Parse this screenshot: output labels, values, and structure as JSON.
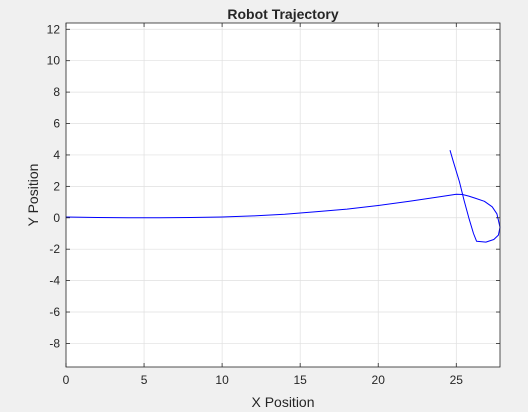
{
  "chart_data": {
    "type": "line",
    "title": "Robot Trajectory",
    "xlabel": "X Position",
    "ylabel": "Y Position",
    "xlim": [
      0,
      27.8
    ],
    "ylim": [
      -9.5,
      12.4
    ],
    "xticks": [
      0,
      5,
      10,
      15,
      20,
      25
    ],
    "xtick_labels": [
      "0",
      "5",
      "10",
      "15",
      "20",
      "25"
    ],
    "yticks": [
      -8,
      -6,
      -4,
      -2,
      0,
      2,
      4,
      6,
      8,
      10,
      12
    ],
    "ytick_labels": [
      "-8",
      "-6",
      "-4",
      "-2",
      "0",
      "2",
      "4",
      "6",
      "8",
      "10",
      "12"
    ],
    "grid": true,
    "series": [
      {
        "color": "#0000ff",
        "x": [
          0,
          2,
          4,
          6,
          8,
          10,
          12,
          14,
          16,
          18,
          20,
          22,
          24,
          25,
          25.4,
          25.8,
          26.2,
          26.8,
          27.3,
          27.6,
          27.8,
          27.7,
          27.4,
          26.9,
          26.3,
          26.1,
          25.8,
          25.5,
          25.2,
          24.8,
          24.6
        ],
        "y": [
          0.05,
          0.02,
          0.0,
          0.0,
          0.02,
          0.05,
          0.12,
          0.22,
          0.38,
          0.55,
          0.78,
          1.05,
          1.35,
          1.5,
          1.48,
          1.38,
          1.25,
          1.05,
          0.7,
          0.25,
          -0.6,
          -1.1,
          -1.38,
          -1.55,
          -1.5,
          -1.0,
          0.0,
          1.1,
          2.3,
          3.6,
          4.3
        ]
      }
    ]
  },
  "colors": {
    "figure_bg": "#f0f0f0",
    "axes_bg": "#ffffff",
    "axes_edge": "#262626",
    "grid": "#dfdfdf",
    "line": "#0000ff"
  }
}
